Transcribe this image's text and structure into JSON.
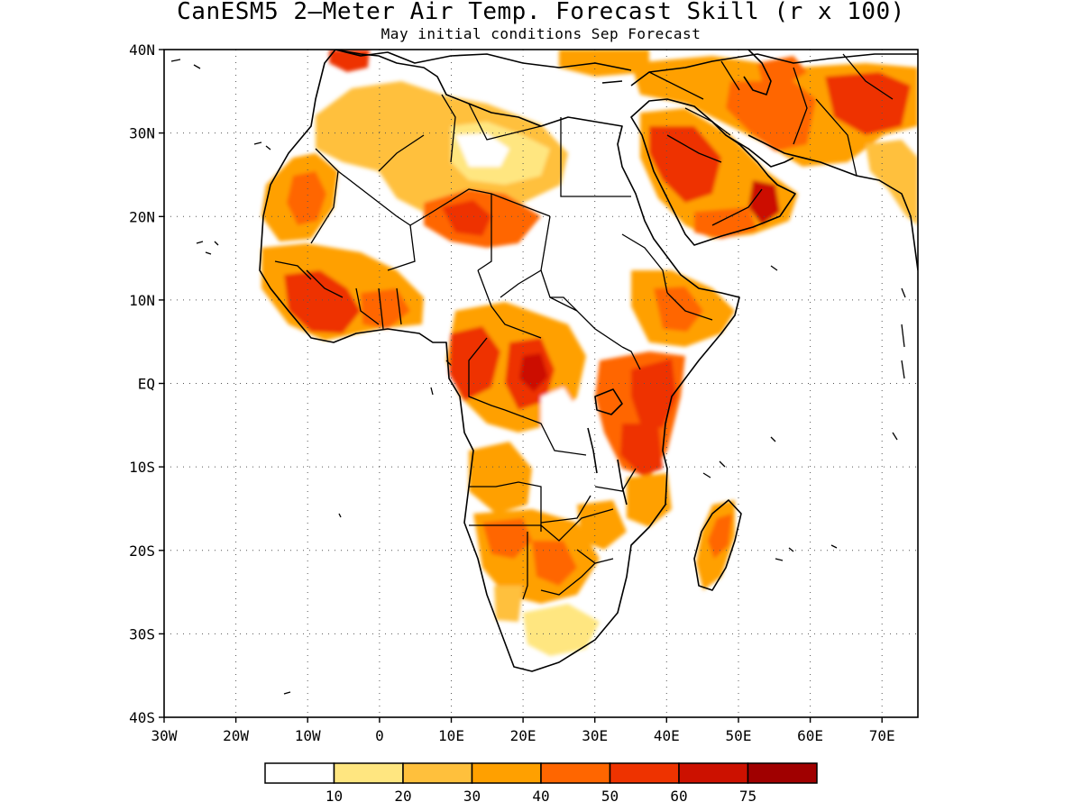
{
  "title": "CanESM5 2–Meter Air Temp. Forecast Skill (r x 100)",
  "subtitle": "May initial conditions  Sep Forecast",
  "axes": {
    "lat_ticks": [
      "40N",
      "30N",
      "20N",
      "10N",
      "EQ",
      "10S",
      "20S",
      "30S",
      "40S"
    ],
    "lon_ticks": [
      "30W",
      "20W",
      "10W",
      "0",
      "10E",
      "20E",
      "30E",
      "40E",
      "50E",
      "60E",
      "70E"
    ],
    "grid": "dotted"
  },
  "colorbar": {
    "labels": [
      "10",
      "20",
      "30",
      "40",
      "50",
      "60",
      "75"
    ],
    "colors": [
      "#ffffff",
      "#ffe680",
      "#ffc03c",
      "#ffa000",
      "#ff6600",
      "#ee3300",
      "#cc1100",
      "#a00000"
    ]
  },
  "colors": {
    "land_outline": "#000000",
    "ocean": "#ffffff"
  },
  "chart_data": {
    "type": "heatmap",
    "variable": "2-Meter Air Temperature forecast skill (r x 100)",
    "lat_range": [
      -40,
      40
    ],
    "lon_range": [
      -30,
      75
    ],
    "levels": [
      10,
      20,
      30,
      40,
      50,
      60,
      75
    ],
    "regions": [
      {
        "lon": [
          -10,
          -4
        ],
        "lat": [
          4,
          12
        ],
        "level": 5
      },
      {
        "lon": [
          -3,
          2
        ],
        "lat": [
          5,
          10
        ],
        "level": 4
      },
      {
        "lon": [
          -16,
          -8
        ],
        "lat": [
          19,
          26
        ],
        "level": 4
      },
      {
        "lon": [
          5,
          15
        ],
        "lat": [
          18,
          24
        ],
        "level": 5
      },
      {
        "lon": [
          -5,
          25
        ],
        "lat": [
          25,
          37
        ],
        "level": 2
      },
      {
        "lon": [
          15,
          25
        ],
        "lat": [
          1,
          5
        ],
        "level": 6
      },
      {
        "lon": [
          10,
          15
        ],
        "lat": [
          -2,
          2
        ],
        "level": 5
      },
      {
        "lon": [
          35,
          42
        ],
        "lat": [
          -10,
          2
        ],
        "level": 5
      },
      {
        "lon": [
          40,
          55
        ],
        "lat": [
          18,
          28
        ],
        "level": 5
      },
      {
        "lon": [
          52,
          56
        ],
        "lat": [
          20,
          24
        ],
        "level": 6
      },
      {
        "lon": [
          45,
          65
        ],
        "lat": [
          30,
          38
        ],
        "level": 4
      },
      {
        "lon": [
          18,
          25
        ],
        "lat": [
          -22,
          -16
        ],
        "level": 4
      },
      {
        "lon": [
          44,
          50
        ],
        "lat": [
          -24,
          -14
        ],
        "level": 4
      }
    ]
  }
}
